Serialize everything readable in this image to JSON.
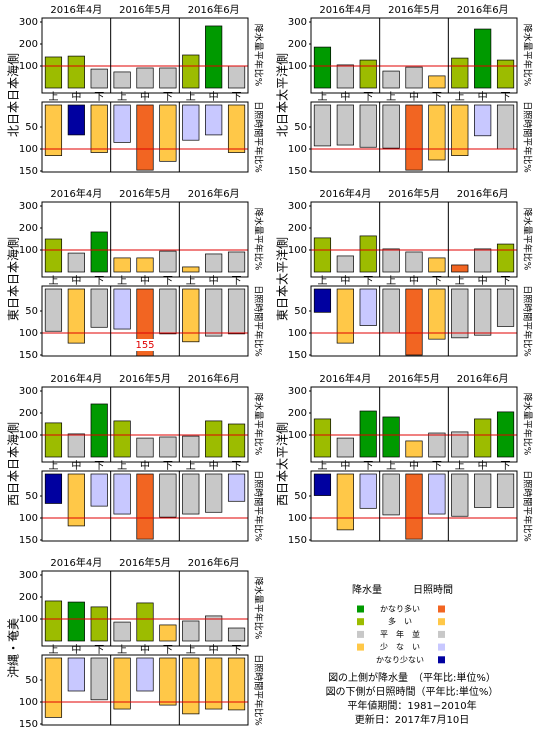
{
  "chart_data": [
    {
      "type": "bar",
      "title": "北日本日本海側",
      "months": [
        "2016年4月",
        "2016年5月",
        "2016年6月"
      ],
      "categories": [
        "上",
        "中",
        "下",
        "上",
        "中",
        "下",
        "上",
        "中",
        "下"
      ],
      "reference": 100,
      "reference_color": "#e00000",
      "precipitation": {
        "axis_label": "降水量平年比%",
        "ylim": [
          0,
          300
        ],
        "yticks": [
          100,
          200,
          300
        ],
        "values": [
          141,
          145,
          86,
          73,
          91,
          91,
          150,
          282,
          100
        ],
        "colors": [
          "#9cbc00",
          "#9cbc00",
          "#c8c8c8",
          "#c8c8c8",
          "#c8c8c8",
          "#c8c8c8",
          "#9cbc00",
          "#009a00",
          "#c8c8c8"
        ]
      },
      "sunshine": {
        "axis_label": "日照時間平年比%",
        "ylim": [
          0,
          150
        ],
        "yticks": [
          50,
          100,
          150
        ],
        "values": [
          115,
          68,
          108,
          85,
          148,
          128,
          80,
          68,
          108
        ],
        "colors": [
          "#ffc848",
          "#0000a0",
          "#ffc848",
          "#c8c8ff",
          "#f26522",
          "#ffc848",
          "#c8c8ff",
          "#c8c8ff",
          "#ffc848"
        ]
      }
    },
    {
      "type": "bar",
      "title": "北日本太平洋側",
      "months": [
        "2016年4月",
        "2016年5月",
        "2016年6月"
      ],
      "categories": [
        "上",
        "中",
        "下",
        "上",
        "中",
        "下",
        "上",
        "中",
        "下"
      ],
      "reference": 100,
      "reference_color": "#e00000",
      "precipitation": {
        "axis_label": "降水量平年比%",
        "ylim": [
          0,
          300
        ],
        "yticks": [
          100,
          200,
          300
        ],
        "values": [
          186,
          105,
          127,
          77,
          95,
          55,
          136,
          268,
          127
        ],
        "colors": [
          "#009a00",
          "#c8c8c8",
          "#9cbc00",
          "#c8c8c8",
          "#c8c8c8",
          "#ffc848",
          "#9cbc00",
          "#009a00",
          "#9cbc00"
        ]
      },
      "sunshine": {
        "axis_label": "日照時間平年比%",
        "ylim": [
          0,
          150
        ],
        "yticks": [
          50,
          100,
          150
        ],
        "values": [
          93,
          91,
          96,
          98,
          148,
          125,
          115,
          70,
          100
        ],
        "colors": [
          "#c8c8c8",
          "#c8c8c8",
          "#c8c8c8",
          "#c8c8c8",
          "#f26522",
          "#ffc848",
          "#ffc848",
          "#c8c8ff",
          "#c8c8c8"
        ]
      }
    },
    {
      "type": "bar",
      "title": "東日本日本海側",
      "months": [
        "2016年4月",
        "2016年5月",
        "2016年6月"
      ],
      "categories": [
        "上",
        "中",
        "下",
        "上",
        "中",
        "下",
        "上",
        "中",
        "下"
      ],
      "reference": 100,
      "reference_color": "#e00000",
      "precipitation": {
        "axis_label": "降水量平年比%",
        "ylim": [
          0,
          300
        ],
        "yticks": [
          100,
          200,
          300
        ],
        "values": [
          150,
          86,
          182,
          64,
          64,
          95,
          23,
          82,
          91
        ],
        "colors": [
          "#9cbc00",
          "#c8c8c8",
          "#009a00",
          "#ffc848",
          "#ffc848",
          "#c8c8c8",
          "#ffc848",
          "#c8c8c8",
          "#c8c8c8"
        ]
      },
      "sunshine": {
        "axis_label": "日照時間平年比%",
        "ylim": [
          0,
          150
        ],
        "yticks": [
          50,
          100,
          150
        ],
        "values": [
          96,
          123,
          87,
          91,
          155,
          102,
          120,
          107,
          102
        ],
        "value_labels": [
          null,
          null,
          null,
          null,
          "155",
          null,
          null,
          null,
          null
        ],
        "colors": [
          "#c8c8c8",
          "#ffc848",
          "#c8c8c8",
          "#c8c8ff",
          "#f26522",
          "#c8c8c8",
          "#ffc848",
          "#c8c8c8",
          "#c8c8c8"
        ]
      }
    },
    {
      "type": "bar",
      "title": "東日本太平洋側",
      "months": [
        "2016年4月",
        "2016年5月",
        "2016年6月"
      ],
      "categories": [
        "上",
        "中",
        "下",
        "上",
        "中",
        "下",
        "上",
        "中",
        "下"
      ],
      "reference": 100,
      "reference_color": "#e00000",
      "precipitation": {
        "axis_label": "降水量平年比%",
        "ylim": [
          0,
          300
        ],
        "yticks": [
          100,
          200,
          300
        ],
        "values": [
          155,
          73,
          164,
          105,
          91,
          64,
          32,
          105,
          127
        ],
        "colors": [
          "#9cbc00",
          "#c8c8c8",
          "#9cbc00",
          "#c8c8c8",
          "#c8c8c8",
          "#ffc848",
          "#f26522",
          "#c8c8c8",
          "#9cbc00"
        ]
      },
      "sunshine": {
        "axis_label": "日照時間平年比%",
        "ylim": [
          0,
          150
        ],
        "yticks": [
          50,
          100,
          150
        ],
        "values": [
          53,
          123,
          83,
          100,
          150,
          114,
          111,
          105,
          85
        ],
        "colors": [
          "#0000a0",
          "#ffc848",
          "#c8c8ff",
          "#c8c8c8",
          "#f26522",
          "#ffc848",
          "#c8c8c8",
          "#c8c8c8",
          "#c8c8c8"
        ]
      }
    },
    {
      "type": "bar",
      "title": "西日本日本海側",
      "months": [
        "2016年4月",
        "2016年5月",
        "2016年6月"
      ],
      "categories": [
        "上",
        "中",
        "下",
        "上",
        "中",
        "下",
        "上",
        "中",
        "下"
      ],
      "reference": 100,
      "reference_color": "#e00000",
      "precipitation": {
        "axis_label": "降水量平年比%",
        "ylim": [
          0,
          300
        ],
        "yticks": [
          100,
          200,
          300
        ],
        "values": [
          155,
          105,
          241,
          164,
          86,
          91,
          95,
          164,
          150
        ],
        "colors": [
          "#9cbc00",
          "#c8c8c8",
          "#009a00",
          "#9cbc00",
          "#c8c8c8",
          "#c8c8c8",
          "#c8c8c8",
          "#9cbc00",
          "#9cbc00"
        ]
      },
      "sunshine": {
        "axis_label": "日照時間平年比%",
        "ylim": [
          0,
          150
        ],
        "yticks": [
          50,
          100,
          150
        ],
        "values": [
          67,
          118,
          73,
          91,
          148,
          98,
          91,
          87,
          62
        ],
        "colors": [
          "#0000a0",
          "#ffc848",
          "#c8c8ff",
          "#c8c8ff",
          "#f26522",
          "#c8c8c8",
          "#c8c8c8",
          "#c8c8c8",
          "#c8c8ff"
        ]
      }
    },
    {
      "type": "bar",
      "title": "西日本太平洋側",
      "months": [
        "2016年4月",
        "2016年5月",
        "2016年6月"
      ],
      "categories": [
        "上",
        "中",
        "下",
        "上",
        "中",
        "下",
        "上",
        "中",
        "下"
      ],
      "reference": 100,
      "reference_color": "#e00000",
      "precipitation": {
        "axis_label": "降水量平年比%",
        "ylim": [
          0,
          300
        ],
        "yticks": [
          100,
          200,
          300
        ],
        "values": [
          173,
          86,
          209,
          182,
          73,
          109,
          114,
          173,
          205
        ],
        "colors": [
          "#9cbc00",
          "#c8c8c8",
          "#009a00",
          "#009a00",
          "#ffc848",
          "#c8c8c8",
          "#c8c8c8",
          "#9cbc00",
          "#009a00"
        ]
      },
      "sunshine": {
        "axis_label": "日照時間平年比%",
        "ylim": [
          0,
          150
        ],
        "yticks": [
          50,
          100,
          150
        ],
        "values": [
          49,
          127,
          78,
          93,
          148,
          91,
          96,
          76,
          76
        ],
        "colors": [
          "#0000a0",
          "#ffc848",
          "#c8c8ff",
          "#c8c8c8",
          "#f26522",
          "#c8c8ff",
          "#c8c8c8",
          "#c8c8c8",
          "#c8c8c8"
        ]
      }
    },
    {
      "type": "bar",
      "title": "沖縄・奄美",
      "months": [
        "2016年4月",
        "2016年5月",
        "2016年6月"
      ],
      "categories": [
        "上",
        "中",
        "下",
        "上",
        "中",
        "下",
        "上",
        "中",
        "下"
      ],
      "reference": 100,
      "reference_color": "#e00000",
      "precipitation": {
        "axis_label": "降水量平年比%",
        "ylim": [
          0,
          300
        ],
        "yticks": [
          100,
          200,
          300
        ],
        "values": [
          182,
          177,
          155,
          86,
          173,
          73,
          91,
          114,
          59
        ],
        "colors": [
          "#9cbc00",
          "#009a00",
          "#9cbc00",
          "#c8c8c8",
          "#9cbc00",
          "#ffc848",
          "#c8c8c8",
          "#c8c8c8",
          "#c8c8c8"
        ]
      },
      "sunshine": {
        "axis_label": "日照時間平年比%",
        "ylim": [
          0,
          150
        ],
        "yticks": [
          50,
          100,
          150
        ],
        "values": [
          135,
          75,
          95,
          116,
          75,
          107,
          127,
          116,
          118
        ],
        "colors": [
          "#ffc848",
          "#c8c8ff",
          "#c8c8c8",
          "#ffc848",
          "#c8c8ff",
          "#ffc848",
          "#ffc848",
          "#ffc848",
          "#ffc848"
        ]
      }
    }
  ],
  "legend": {
    "headers": [
      "降水量",
      "日照時間"
    ],
    "rows": [
      {
        "label": "かなり多い",
        "precipitation": "#009a00",
        "sunshine": "#f26522"
      },
      {
        "label": "多　い",
        "precipitation": "#9cbc00",
        "sunshine": "#ffc848"
      },
      {
        "label": "平　年　並",
        "precipitation": "#c8c8c8",
        "sunshine": "#c8c8c8"
      },
      {
        "label": "少　な　い",
        "precipitation": "#ffc848",
        "sunshine": "#c8c8ff"
      },
      {
        "label": "かなり少ない",
        "precipitation": null,
        "sunshine": "#0000a0"
      }
    ]
  },
  "notes": [
    "図の上側が降水量　（平年比:単位%）",
    "図の下側が日照時間（平年比:単位%）",
    "平年値期間：1981−2010年",
    "更新日：2017年7月10日"
  ]
}
